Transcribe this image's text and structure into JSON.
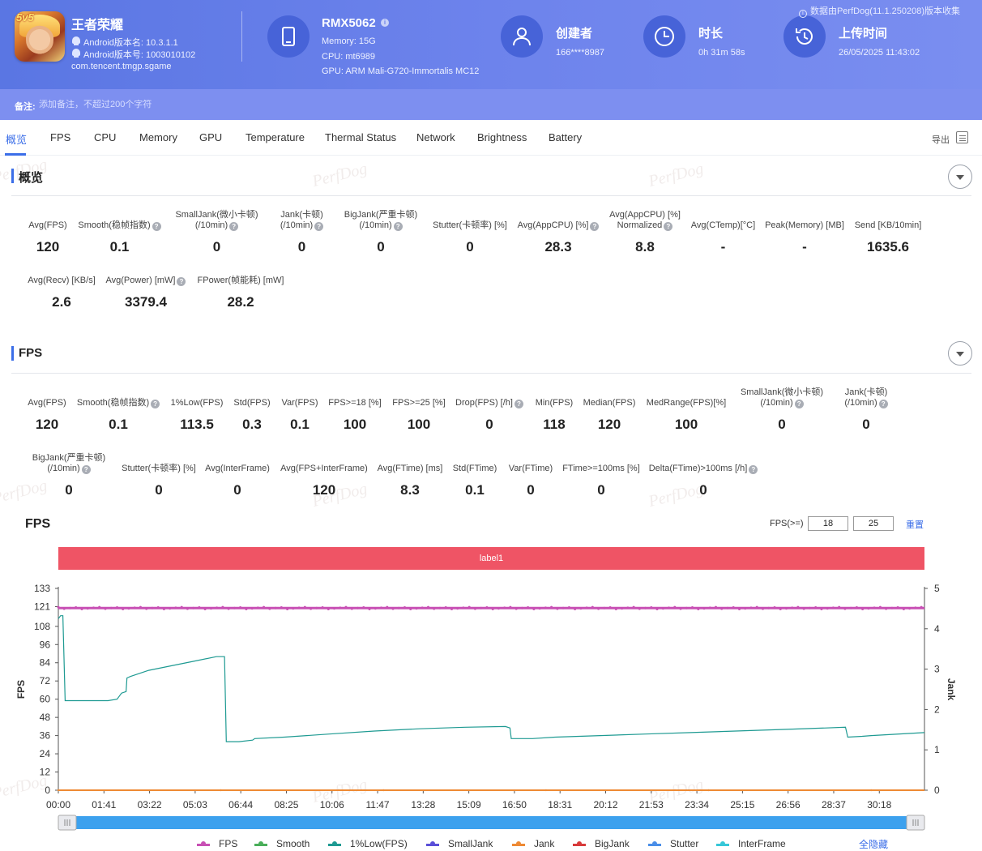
{
  "header": {
    "app_name": "王者荣耀",
    "app_version_name": "Android版本名: 10.3.1.1",
    "app_version_code": "Android版本号: 1003010102",
    "package": "com.tencent.tmgp.sgame",
    "device": {
      "name": "RMX5062",
      "memory": "Memory: 15G",
      "cpu": "CPU: mt6989",
      "gpu": "GPU: ARM Mali-G720-Immortalis MC12"
    },
    "creator": {
      "title": "创建者",
      "value": "166****8987"
    },
    "duration": {
      "title": "时长",
      "value": "0h 31m 58s"
    },
    "upload": {
      "title": "上传时间",
      "value": "26/05/2025 11:43:02"
    },
    "source_note": "数据由PerfDog(11.1.250208)版本收集"
  },
  "remark": {
    "label": "备注:",
    "placeholder": "添加备注，不超过200个字符"
  },
  "tabs": [
    "概览",
    "FPS",
    "CPU",
    "Memory",
    "GPU",
    "Temperature",
    "Thermal Status",
    "Network",
    "Brightness",
    "Battery"
  ],
  "export_label": "导出",
  "watermark": "PerfDog",
  "overview": {
    "title": "概览",
    "metrics": [
      {
        "label": "Avg(FPS)",
        "value": "120"
      },
      {
        "label": "Smooth(稳帧指数)",
        "value": "0.1",
        "help": true
      },
      {
        "label": "SmallJank(微小卡顿)",
        "label2": "(/10min)",
        "value": "0",
        "help": true
      },
      {
        "label": "Jank(卡顿)",
        "label2": "(/10min)",
        "value": "0",
        "help": true
      },
      {
        "label": "BigJank(严重卡顿)",
        "label2": "(/10min)",
        "value": "0",
        "help": true
      },
      {
        "label": "Stutter(卡顿率) [%]",
        "value": "0"
      },
      {
        "label": "Avg(AppCPU) [%]",
        "value": "28.3",
        "help": true
      },
      {
        "label": "Avg(AppCPU) [%]",
        "label2": "Normalized",
        "value": "8.8",
        "help": true
      },
      {
        "label": "Avg(CTemp)[°C]",
        "value": "-"
      },
      {
        "label": "Peak(Memory) [MB]",
        "value": "-"
      },
      {
        "label": "Send [KB/10min]",
        "value": "1635.6"
      },
      {
        "label": "Avg(Recv) [KB/s]",
        "value": "2.6"
      },
      {
        "label": "Avg(Power) [mW]",
        "value": "3379.4",
        "help": true
      },
      {
        "label": "FPower(帧能耗) [mW]",
        "value": "28.2"
      }
    ]
  },
  "fps_section": {
    "title": "FPS",
    "metrics": [
      {
        "label": "Avg(FPS)",
        "value": "120"
      },
      {
        "label": "Smooth(稳帧指数)",
        "value": "0.1",
        "help": true
      },
      {
        "label": "1%Low(FPS)",
        "value": "113.5"
      },
      {
        "label": "Std(FPS)",
        "value": "0.3"
      },
      {
        "label": "Var(FPS)",
        "value": "0.1"
      },
      {
        "label": "FPS>=18 [%]",
        "value": "100"
      },
      {
        "label": "FPS>=25 [%]",
        "value": "100"
      },
      {
        "label": "Drop(FPS) [/h]",
        "value": "0",
        "help": true
      },
      {
        "label": "Min(FPS)",
        "value": "118"
      },
      {
        "label": "Median(FPS)",
        "value": "120"
      },
      {
        "label": "MedRange(FPS)[%]",
        "value": "100"
      },
      {
        "label": "SmallJank(微小卡顿)",
        "label2": "(/10min)",
        "value": "0",
        "help": true
      },
      {
        "label": "Jank(卡顿)",
        "label2": "(/10min)",
        "value": "0",
        "help": true
      },
      {
        "label": "BigJank(严重卡顿)",
        "label2": "(/10min)",
        "value": "0",
        "help": true
      },
      {
        "label": "Stutter(卡顿率) [%]",
        "value": "0"
      },
      {
        "label": "Avg(InterFrame)",
        "value": "0"
      },
      {
        "label": "Avg(FPS+InterFrame)",
        "value": "120"
      },
      {
        "label": "Avg(FTime) [ms]",
        "value": "8.3"
      },
      {
        "label": "Std(FTime)",
        "value": "0.1"
      },
      {
        "label": "Var(FTime)",
        "value": "0"
      },
      {
        "label": "FTime>=100ms [%]",
        "value": "0"
      },
      {
        "label": "Delta(FTime)>100ms [/h]",
        "value": "0",
        "help": true
      }
    ]
  },
  "chart_controls": {
    "threshold_label": "FPS(>=)",
    "threshold_1": "18",
    "threshold_2": "25",
    "reset_label": "重置",
    "hide_all_label": "全隐藏"
  },
  "chart_data": {
    "type": "line",
    "title": "FPS",
    "band_label": "label1",
    "ylabel": "FPS",
    "y2label": "Jank",
    "ylim": [
      0,
      133
    ],
    "y2lim": [
      0,
      5
    ],
    "yticks": [
      0,
      12,
      24,
      36,
      48,
      60,
      72,
      84,
      96,
      108,
      121,
      133
    ],
    "y2ticks": [
      0,
      1,
      2,
      3,
      4,
      5
    ],
    "xticks": [
      "00:00",
      "01:41",
      "03:22",
      "05:03",
      "06:44",
      "08:25",
      "10:06",
      "11:47",
      "13:28",
      "15:09",
      "16:50",
      "18:31",
      "20:12",
      "21:53",
      "23:34",
      "25:15",
      "26:56",
      "28:37",
      "30:18"
    ],
    "x_range_seconds": [
      0,
      1918
    ],
    "series": [
      {
        "name": "FPS",
        "color": "#c850b4",
        "axis": "left",
        "points": [
          [
            0,
            120
          ],
          [
            1918,
            120
          ]
        ]
      },
      {
        "name": "Smooth",
        "color": "#4aae5a",
        "axis": "left",
        "points": []
      },
      {
        "name": "1%Low(FPS)",
        "color": "#1e9a92",
        "axis": "left",
        "points": [
          [
            0,
            113
          ],
          [
            5,
            115
          ],
          [
            10,
            115
          ],
          [
            15,
            59
          ],
          [
            60,
            59
          ],
          [
            110,
            59
          ],
          [
            130,
            60
          ],
          [
            140,
            64
          ],
          [
            150,
            65
          ],
          [
            152,
            74
          ],
          [
            160,
            75
          ],
          [
            200,
            79
          ],
          [
            250,
            82
          ],
          [
            300,
            85
          ],
          [
            350,
            88
          ],
          [
            368,
            88
          ],
          [
            372,
            32
          ],
          [
            400,
            32
          ],
          [
            430,
            33
          ],
          [
            435,
            34
          ],
          [
            500,
            35
          ],
          [
            600,
            37
          ],
          [
            700,
            39
          ],
          [
            800,
            40.5
          ],
          [
            900,
            41.5
          ],
          [
            990,
            42
          ],
          [
            1000,
            41
          ],
          [
            1003,
            34
          ],
          [
            1050,
            34
          ],
          [
            1100,
            35
          ],
          [
            1200,
            36
          ],
          [
            1300,
            37
          ],
          [
            1400,
            38
          ],
          [
            1500,
            39
          ],
          [
            1600,
            40
          ],
          [
            1700,
            41
          ],
          [
            1743,
            41.5
          ],
          [
            1748,
            35
          ],
          [
            1780,
            35.5
          ],
          [
            1800,
            36
          ],
          [
            1918,
            38
          ]
        ]
      },
      {
        "name": "SmallJank",
        "color": "#5a4fd8",
        "axis": "right",
        "points": []
      },
      {
        "name": "Jank",
        "color": "#ee8a34",
        "axis": "right",
        "points": [
          [
            0,
            0
          ],
          [
            1918,
            0
          ]
        ]
      },
      {
        "name": "BigJank",
        "color": "#d83a3a",
        "axis": "right",
        "points": []
      },
      {
        "name": "Stutter",
        "color": "#4a8ee8",
        "axis": "right",
        "points": []
      },
      {
        "name": "InterFrame",
        "color": "#37c7d8",
        "axis": "left",
        "points": []
      }
    ]
  }
}
